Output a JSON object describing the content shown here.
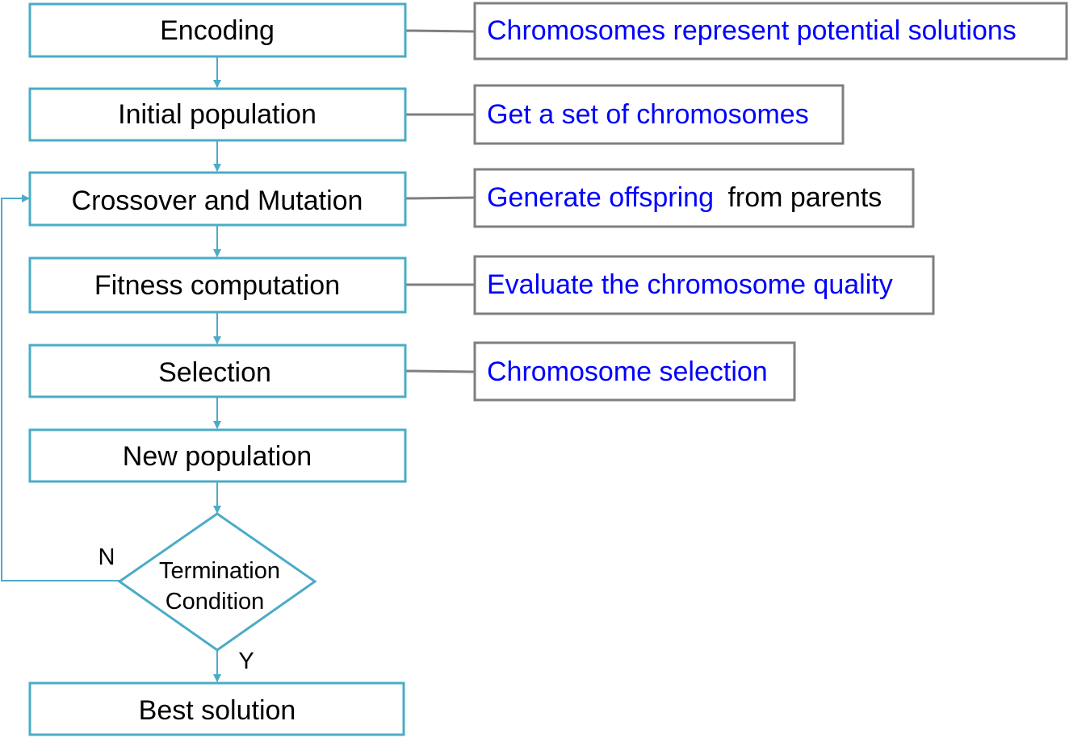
{
  "colors": {
    "flow_stroke": "#4bacc6",
    "note_stroke": "#7f7f7f",
    "connector_stroke": "#7f7f7f",
    "note_blue": "#0000ff",
    "text_black": "#000000"
  },
  "steps": [
    {
      "id": "encoding",
      "label": "Encoding"
    },
    {
      "id": "initial-population",
      "label": "Initial population"
    },
    {
      "id": "crossover-mutation",
      "label": "Crossover and Mutation"
    },
    {
      "id": "fitness-computation",
      "label": "Fitness computation"
    },
    {
      "id": "selection",
      "label": "Selection"
    },
    {
      "id": "new-population",
      "label": "New population"
    }
  ],
  "decision": {
    "line1": "Termination",
    "line2": "Condition",
    "no_label": "N",
    "yes_label": "Y"
  },
  "final_step": {
    "id": "best-solution",
    "label": "Best solution"
  },
  "notes": [
    {
      "id": "encoding",
      "blue": "Chromosomes represent potential solutions",
      "black": ""
    },
    {
      "id": "initial-population",
      "blue": "Get a set of chromosomes",
      "black": ""
    },
    {
      "id": "crossover-mutation",
      "blue": "Generate offspring",
      "black": "from parents"
    },
    {
      "id": "fitness-computation",
      "blue": "Evaluate the chromosome quality",
      "black": ""
    },
    {
      "id": "selection",
      "blue": "Chromosome selection",
      "black": ""
    }
  ]
}
